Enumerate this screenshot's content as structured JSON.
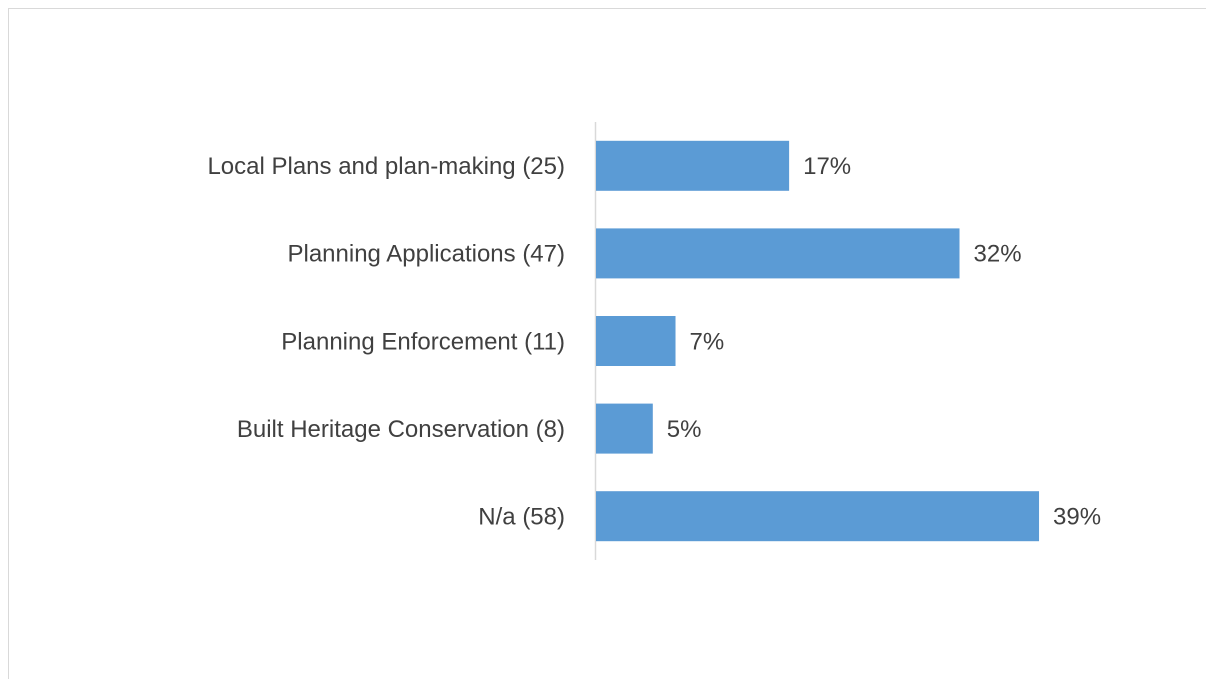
{
  "chart_data": {
    "type": "bar",
    "orientation": "horizontal",
    "categories": [
      "Local Plans and plan-making (25)",
      "Planning Applications (47)",
      "Planning Enforcement (11)",
      "Built Heritage Conservation (8)",
      "N/a (58)"
    ],
    "values": [
      17,
      32,
      7,
      5,
      39
    ],
    "value_labels": [
      "17%",
      "32%",
      "7%",
      "5%",
      "39%"
    ],
    "color": "#5b9bd5"
  }
}
